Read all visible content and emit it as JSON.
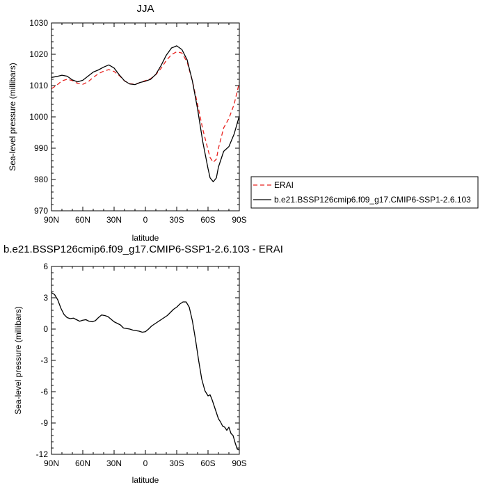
{
  "chart_data": [
    {
      "type": "line",
      "title": "JJA",
      "xlabel": "latitude",
      "ylabel": "Sea-level pressure (millibars)",
      "xlim": [
        -90,
        90
      ],
      "ylim": [
        970,
        1030
      ],
      "xticks": [
        -90,
        -60,
        -30,
        0,
        30,
        60,
        90
      ],
      "xtick_labels": [
        "90N",
        "60N",
        "30N",
        "0",
        "30S",
        "60S",
        "90S"
      ],
      "yticks": [
        970,
        980,
        990,
        1000,
        1010,
        1020,
        1030
      ],
      "ytick_labels": [
        "970",
        "980",
        "990",
        "1000",
        "1010",
        "1020",
        "1030"
      ],
      "legend_position": "right",
      "series": [
        {
          "name": "ERAI",
          "color": "#e8211e",
          "style": "dashed",
          "x": [
            -90,
            -85,
            -80,
            -75,
            -70,
            -65,
            -60,
            -55,
            -50,
            -45,
            -40,
            -35,
            -30,
            -25,
            -20,
            -15,
            -10,
            -5,
            0,
            5,
            10,
            15,
            20,
            25,
            30,
            35,
            40,
            45,
            50,
            55,
            60,
            62,
            65,
            68,
            70,
            75,
            80,
            85,
            90
          ],
          "y": [
            1009.0,
            1010.1,
            1011.5,
            1012.0,
            1011.6,
            1010.7,
            1010.4,
            1011.2,
            1012.6,
            1013.8,
            1014.6,
            1015.1,
            1014.5,
            1013.2,
            1011.5,
            1010.6,
            1010.4,
            1011.0,
            1011.6,
            1012.2,
            1013.5,
            1015.5,
            1018.0,
            1019.9,
            1020.8,
            1020.4,
            1017.5,
            1011.5,
            1004.0,
            996.0,
            989.5,
            987.0,
            985.5,
            986.5,
            990.0,
            996.5,
            999.5,
            1004.0,
            1011.0
          ]
        },
        {
          "name": "b.e21.BSSP126cmip6.f09_g17.CMIP6-SSP1-2.6.103",
          "color": "#000000",
          "style": "solid",
          "x": [
            -90,
            -85,
            -80,
            -75,
            -70,
            -65,
            -60,
            -55,
            -50,
            -45,
            -40,
            -35,
            -30,
            -25,
            -20,
            -15,
            -10,
            -5,
            0,
            5,
            10,
            15,
            20,
            25,
            30,
            35,
            40,
            45,
            50,
            55,
            60,
            62,
            65,
            68,
            70,
            75,
            80,
            85,
            90
          ],
          "y": [
            1012.6,
            1012.9,
            1013.3,
            1013.0,
            1011.8,
            1011.2,
            1011.7,
            1013.0,
            1014.3,
            1015.0,
            1015.9,
            1016.6,
            1015.6,
            1013.4,
            1011.5,
            1010.5,
            1010.3,
            1011.0,
            1011.4,
            1012.0,
            1013.6,
            1016.4,
            1019.7,
            1022.0,
            1022.7,
            1021.5,
            1018.2,
            1011.5,
            1002.5,
            992.0,
            983.5,
            980.5,
            979.3,
            980.5,
            984.0,
            989.0,
            990.5,
            994.5,
            1000.3
          ]
        }
      ]
    },
    {
      "type": "line",
      "title": "b.e21.BSSP126cmip6.f09_g17.CMIP6-SSP1-2.6.103 - ERAI",
      "xlabel": "latitude",
      "ylabel": "Sea-level pressure (millibars)",
      "xlim": [
        -90,
        90
      ],
      "ylim": [
        -12,
        6
      ],
      "xticks": [
        -90,
        -60,
        -30,
        0,
        30,
        60,
        90
      ],
      "xtick_labels": [
        "90N",
        "60N",
        "30N",
        "0",
        "30S",
        "60S",
        "90S"
      ],
      "yticks": [
        -12,
        -9,
        -6,
        -3,
        0,
        3,
        6
      ],
      "ytick_labels": [
        "-12",
        "-9",
        "-6",
        "-3",
        "0",
        "3",
        "6"
      ],
      "series": [
        {
          "color": "#000000",
          "style": "solid",
          "x": [
            -90,
            -87,
            -84,
            -81,
            -78,
            -75,
            -72,
            -69,
            -66,
            -63,
            -60,
            -57,
            -54,
            -51,
            -48,
            -45,
            -42,
            -39,
            -36,
            -33,
            -30,
            -27,
            -24,
            -21,
            -18,
            -15,
            -12,
            -9,
            -6,
            -3,
            0,
            3,
            6,
            9,
            12,
            15,
            18,
            21,
            24,
            27,
            30,
            33,
            36,
            39,
            42,
            45,
            48,
            51,
            54,
            57,
            60,
            62,
            64,
            66,
            68,
            70,
            72,
            74,
            76,
            78,
            80,
            82,
            84,
            86,
            88,
            90
          ],
          "y": [
            3.5,
            3.3,
            2.8,
            2.0,
            1.4,
            1.1,
            1.0,
            1.05,
            0.9,
            0.75,
            0.85,
            0.9,
            0.75,
            0.7,
            0.8,
            1.1,
            1.35,
            1.3,
            1.2,
            0.95,
            0.7,
            0.55,
            0.4,
            0.1,
            0.05,
            0.0,
            -0.1,
            -0.15,
            -0.2,
            -0.3,
            -0.25,
            0.0,
            0.3,
            0.5,
            0.7,
            0.9,
            1.1,
            1.3,
            1.6,
            1.9,
            2.1,
            2.4,
            2.6,
            2.6,
            2.1,
            0.8,
            -1.0,
            -3.0,
            -4.8,
            -5.9,
            -6.4,
            -6.3,
            -6.8,
            -7.4,
            -8.0,
            -8.6,
            -8.9,
            -9.3,
            -9.4,
            -9.7,
            -9.4,
            -10.0,
            -10.2,
            -10.9,
            -11.5,
            -11.6
          ]
        }
      ]
    }
  ]
}
